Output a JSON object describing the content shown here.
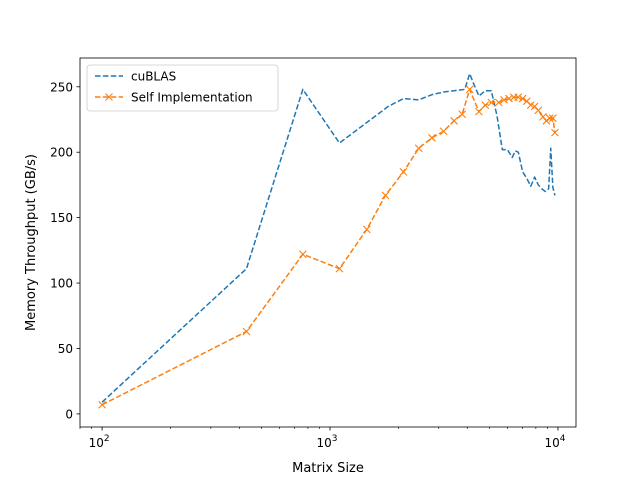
{
  "chart_data": {
    "type": "line",
    "title": "",
    "xlabel": "Matrix Size",
    "ylabel": "Memory Throughput (GB/s)",
    "xscale": "log",
    "xlim": [
      80,
      12000
    ],
    "ylim": [
      -10,
      272
    ],
    "x_ticks": [
      {
        "value": 100,
        "base": "10",
        "exp": "2"
      },
      {
        "value": 1000,
        "base": "10",
        "exp": "3"
      },
      {
        "value": 10000,
        "base": "10",
        "exp": "4"
      }
    ],
    "y_ticks": [
      0,
      50,
      100,
      150,
      200,
      250
    ],
    "grid": false,
    "legend_position": "upper-left",
    "series": [
      {
        "name": "cuBLAS",
        "color": "#1f77b4",
        "line_style": "dashed",
        "marker": "none",
        "x": [
          100,
          430,
          760,
          1100,
          1800,
          2100,
          2450,
          2800,
          3150,
          3500,
          3900,
          4100,
          4250,
          4500,
          4800,
          5100,
          5400,
          5700,
          6000,
          6300,
          6500,
          6700,
          7000,
          7300,
          7600,
          7900,
          8200,
          8500,
          8800,
          9100,
          9300,
          9500,
          9700
        ],
        "y": [
          9,
          111,
          248,
          207,
          235,
          241,
          240,
          244,
          246,
          247,
          248,
          260,
          253,
          243,
          247,
          247,
          228,
          202,
          202,
          196,
          201,
          200,
          185,
          180,
          174,
          181,
          175,
          172,
          170,
          172,
          203,
          173,
          167
        ]
      },
      {
        "name": "Self Implementation",
        "color": "#ff7f0e",
        "line_style": "dashed",
        "marker": "x",
        "x": [
          100,
          430,
          760,
          1100,
          1450,
          1750,
          2100,
          2450,
          2800,
          3150,
          3500,
          3800,
          4100,
          4500,
          4800,
          5100,
          5500,
          5800,
          6100,
          6400,
          6700,
          7000,
          7300,
          7600,
          7900,
          8200,
          8600,
          8900,
          9200,
          9500,
          9700
        ],
        "y": [
          7,
          63,
          122,
          111,
          141,
          167,
          185,
          203,
          211,
          216,
          224,
          229,
          248,
          231,
          236,
          238,
          238,
          240,
          241,
          242,
          242,
          241,
          239,
          236,
          235,
          232,
          227,
          224,
          226,
          226,
          215
        ]
      }
    ]
  }
}
